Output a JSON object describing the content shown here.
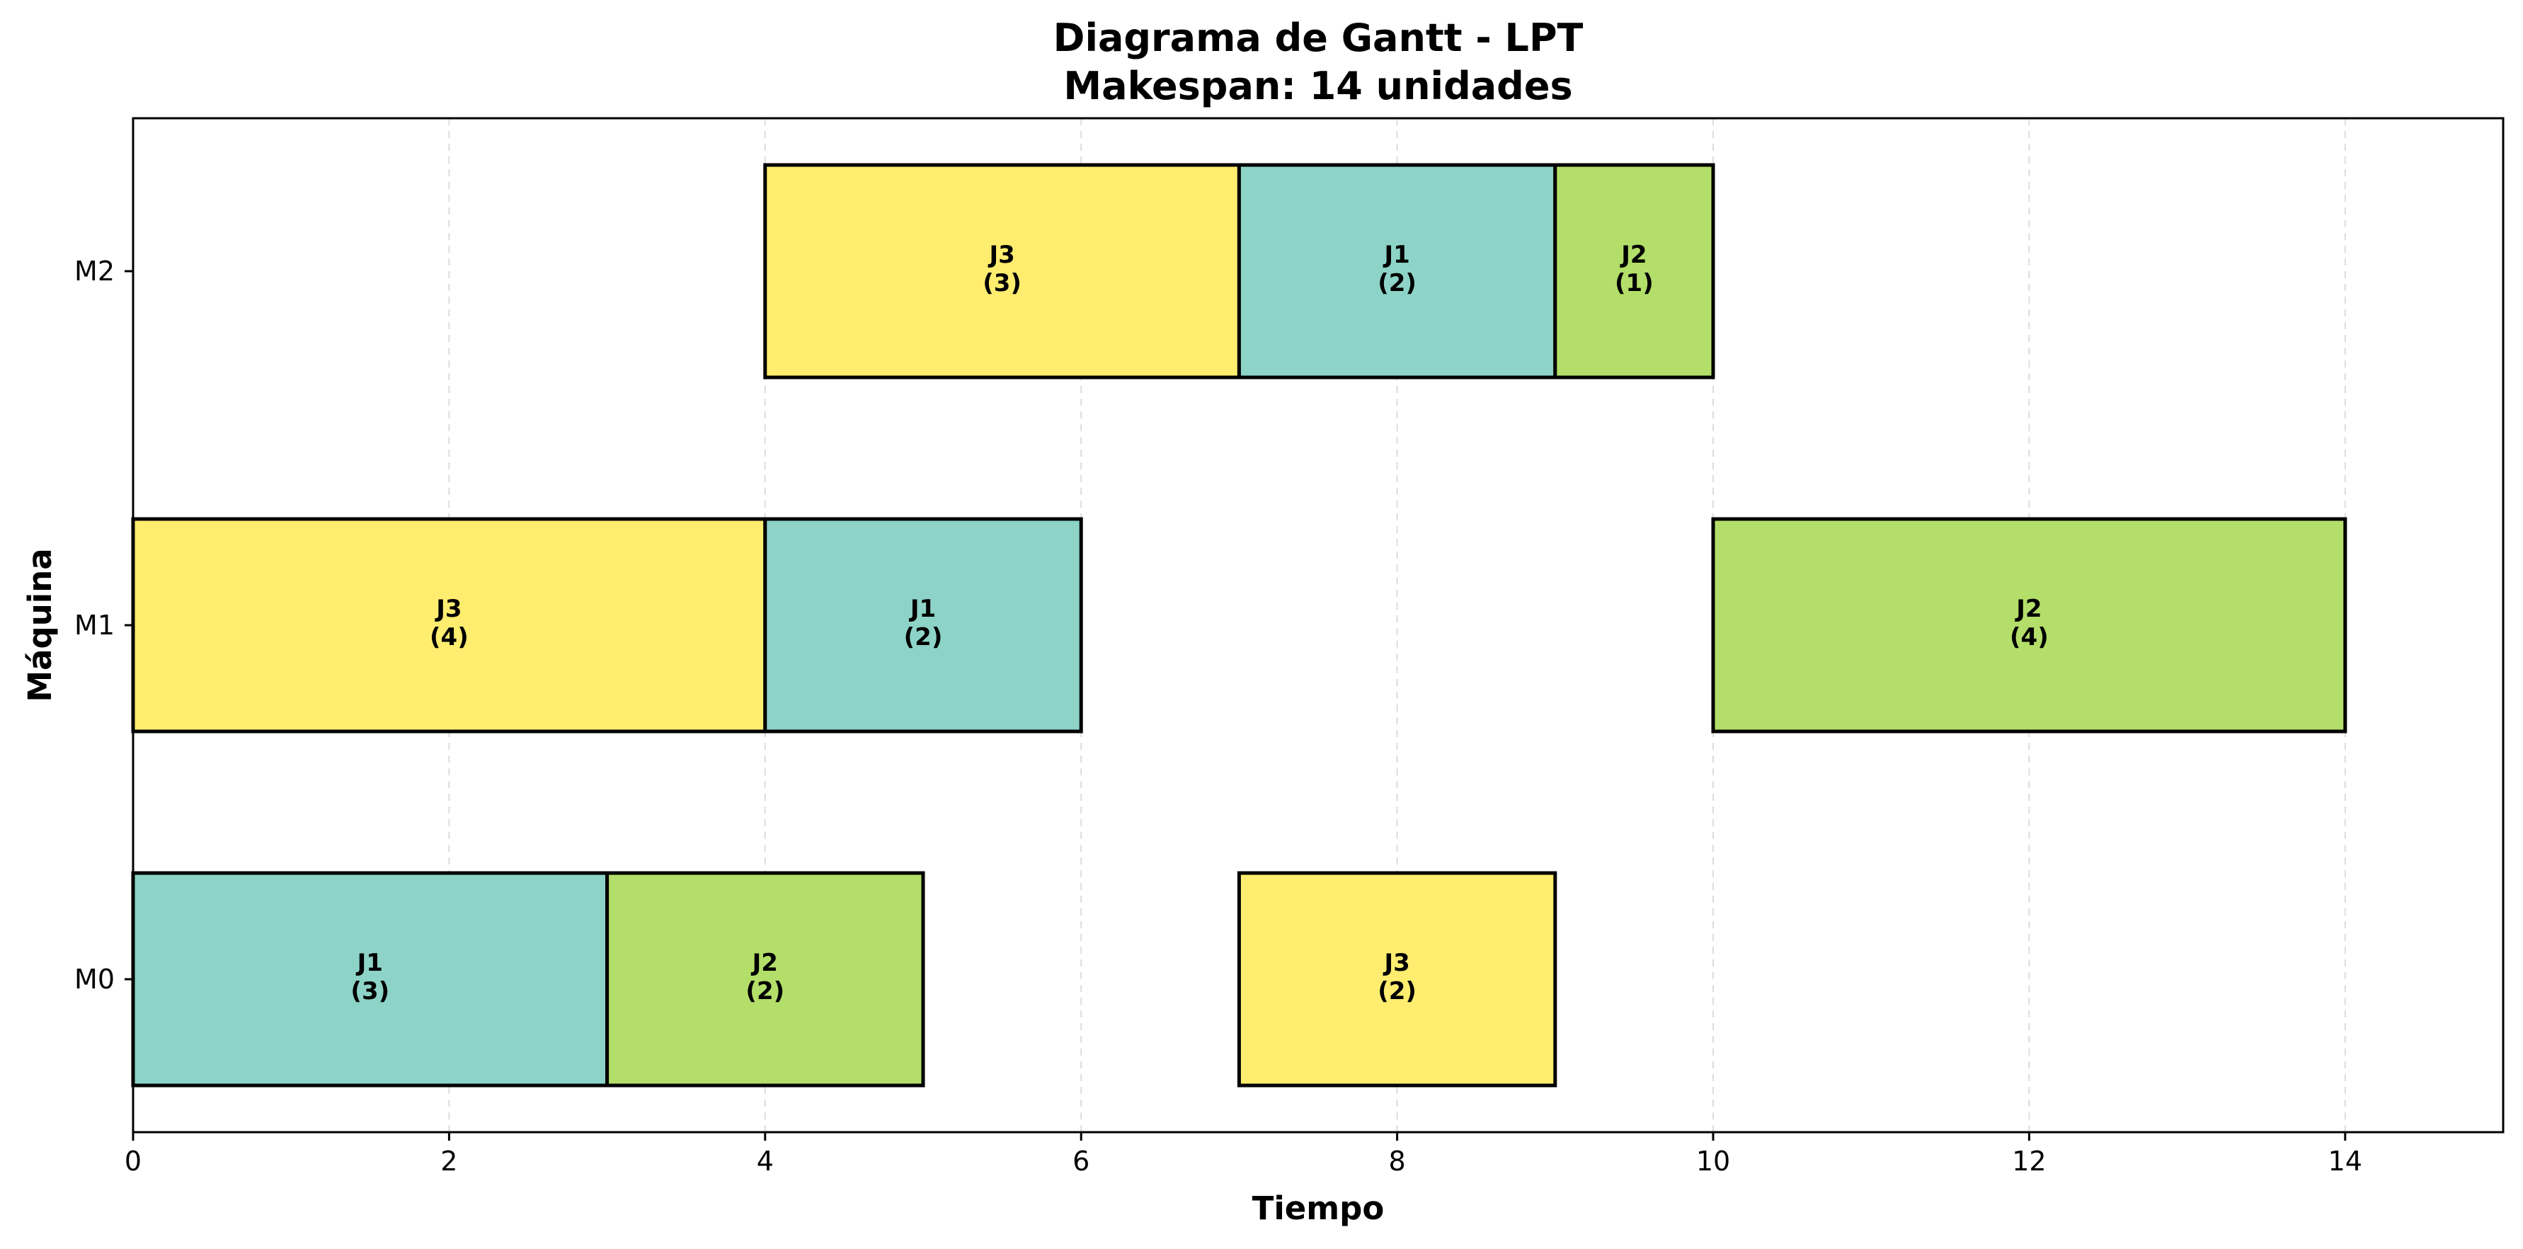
{
  "chart_data": {
    "type": "gantt",
    "title": "Diagrama de Gantt - LPT",
    "subtitle": "Makespan: 14 unidades",
    "xlabel": "Tiempo",
    "ylabel": "Máquina",
    "xlim": [
      0,
      15
    ],
    "xticks": [
      0,
      2,
      4,
      6,
      8,
      10,
      12,
      14
    ],
    "machines": [
      "M0",
      "M1",
      "M2"
    ],
    "grid": "vertical-dashed",
    "job_colors": {
      "J1": "#8dd3c7",
      "J2": "#b3de69",
      "J3": "#ffed6f"
    },
    "tasks": [
      {
        "machine": "M0",
        "job": "J1",
        "start": 0,
        "duration": 3,
        "label": "J1",
        "duration_label": "(3)"
      },
      {
        "machine": "M0",
        "job": "J2",
        "start": 3,
        "duration": 2,
        "label": "J2",
        "duration_label": "(2)"
      },
      {
        "machine": "M0",
        "job": "J3",
        "start": 7,
        "duration": 2,
        "label": "J3",
        "duration_label": "(2)"
      },
      {
        "machine": "M1",
        "job": "J3",
        "start": 0,
        "duration": 4,
        "label": "J3",
        "duration_label": "(4)"
      },
      {
        "machine": "M1",
        "job": "J1",
        "start": 4,
        "duration": 2,
        "label": "J1",
        "duration_label": "(2)"
      },
      {
        "machine": "M1",
        "job": "J2",
        "start": 10,
        "duration": 4,
        "label": "J2",
        "duration_label": "(4)"
      },
      {
        "machine": "M2",
        "job": "J3",
        "start": 4,
        "duration": 3,
        "label": "J3",
        "duration_label": "(3)"
      },
      {
        "machine": "M2",
        "job": "J1",
        "start": 7,
        "duration": 2,
        "label": "J1",
        "duration_label": "(2)"
      },
      {
        "machine": "M2",
        "job": "J2",
        "start": 9,
        "duration": 1,
        "label": "J2",
        "duration_label": "(1)"
      }
    ]
  }
}
